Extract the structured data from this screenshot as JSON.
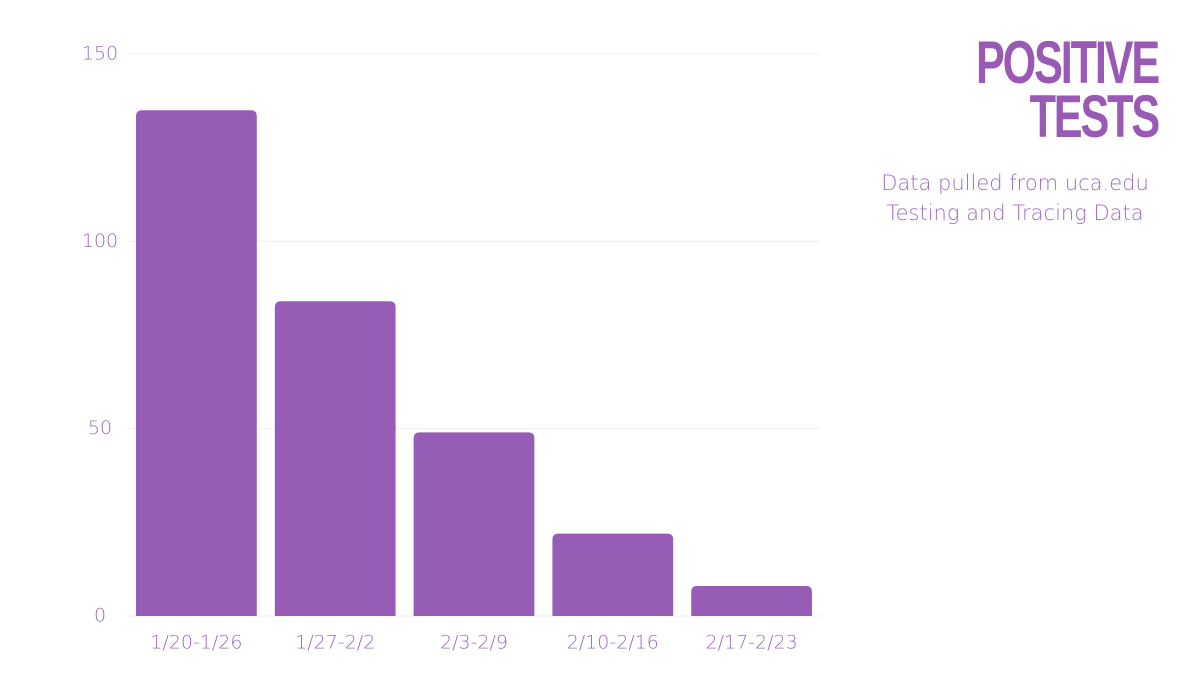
{
  "chart_data": {
    "type": "bar",
    "title": "POSITIVE TESTS",
    "subtitle": "Data pulled from uca.edu Testing and Tracing Data",
    "categories": [
      "1/20-1/26",
      "1/27-2/2",
      "2/3-2/9",
      "2/10-2/16",
      "2/17-2/23"
    ],
    "values": [
      135,
      84,
      49,
      22,
      8
    ],
    "color": "#975cb6",
    "ylim": [
      0,
      150
    ],
    "yticks": [
      0,
      50,
      100,
      150
    ],
    "grid": true
  }
}
